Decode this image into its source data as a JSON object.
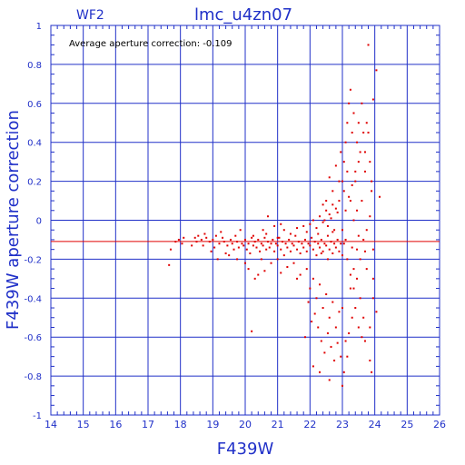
{
  "chart_data": {
    "type": "scatter",
    "panel_label": "WF2",
    "title": "lmc_u4zn07",
    "annotation": "Average aperture correction: -0.109",
    "xlabel": "F439W",
    "ylabel": "F439W aperture correction",
    "xlim": [
      14,
      26
    ],
    "ylim": [
      -1,
      1
    ],
    "xticks": [
      "14",
      "15",
      "16",
      "17",
      "18",
      "19",
      "20",
      "21",
      "22",
      "23",
      "24",
      "25",
      "26"
    ],
    "yticks": [
      "-1",
      "-0.8",
      "-0.6",
      "-0.4",
      "-0.2",
      "0",
      "0.2",
      "0.4",
      "0.6",
      "0.8",
      "1"
    ],
    "grid": true,
    "reference_line_y": -0.109,
    "colors": {
      "axes": "#2030c8",
      "points": "#e00000",
      "reference_line": "#e00000"
    },
    "series": [
      {
        "points": [
          [
            17.65,
            -0.23
          ],
          [
            17.7,
            -0.15
          ],
          [
            17.85,
            -0.11
          ],
          [
            17.95,
            -0.1
          ],
          [
            18.05,
            -0.12
          ],
          [
            18.1,
            -0.09
          ],
          [
            18.35,
            -0.13
          ],
          [
            18.45,
            -0.09
          ],
          [
            18.5,
            -0.11
          ],
          [
            18.55,
            -0.08
          ],
          [
            18.65,
            -0.1
          ],
          [
            18.7,
            -0.13
          ],
          [
            18.8,
            -0.09
          ],
          [
            18.9,
            -0.11
          ],
          [
            19.0,
            -0.1
          ],
          [
            19.05,
            -0.14
          ],
          [
            19.1,
            -0.08
          ],
          [
            19.2,
            -0.12
          ],
          [
            19.3,
            -0.09
          ],
          [
            19.35,
            -0.11
          ],
          [
            19.4,
            -0.17
          ],
          [
            19.45,
            -0.13
          ],
          [
            19.55,
            -0.1
          ],
          [
            19.6,
            -0.12
          ],
          [
            19.65,
            -0.15
          ],
          [
            19.7,
            -0.08
          ],
          [
            19.75,
            -0.11
          ],
          [
            19.8,
            -0.14
          ],
          [
            19.85,
            -0.05
          ],
          [
            19.9,
            -0.12
          ],
          [
            19.95,
            -0.13
          ],
          [
            20.0,
            -0.1
          ],
          [
            20.05,
            -0.15
          ],
          [
            20.1,
            -0.12
          ],
          [
            20.15,
            -0.17
          ],
          [
            20.2,
            -0.09
          ],
          [
            20.25,
            -0.13
          ],
          [
            20.3,
            -0.11
          ],
          [
            20.35,
            -0.14
          ],
          [
            20.4,
            -0.1
          ],
          [
            20.45,
            -0.16
          ],
          [
            20.5,
            -0.12
          ],
          [
            20.55,
            -0.13
          ],
          [
            20.6,
            -0.09
          ],
          [
            20.65,
            -0.15
          ],
          [
            20.7,
            -0.11
          ],
          [
            20.75,
            -0.14
          ],
          [
            20.8,
            -0.12
          ],
          [
            20.85,
            -0.1
          ],
          [
            20.9,
            -0.16
          ],
          [
            20.95,
            -0.12
          ],
          [
            21.0,
            -0.13
          ],
          [
            21.05,
            -0.09
          ],
          [
            21.1,
            -0.15
          ],
          [
            21.15,
            -0.11
          ],
          [
            21.2,
            -0.18
          ],
          [
            21.25,
            -0.12
          ],
          [
            21.3,
            -0.14
          ],
          [
            21.35,
            -0.1
          ],
          [
            21.4,
            -0.16
          ],
          [
            21.45,
            -0.12
          ],
          [
            21.5,
            -0.13
          ],
          [
            21.55,
            -0.08
          ],
          [
            21.6,
            -0.15
          ],
          [
            21.65,
            -0.11
          ],
          [
            21.7,
            -0.17
          ],
          [
            21.75,
            -0.12
          ],
          [
            21.8,
            -0.14
          ],
          [
            21.85,
            -0.1
          ],
          [
            21.9,
            -0.16
          ],
          [
            21.95,
            -0.12
          ],
          [
            22.0,
            -0.13
          ],
          [
            22.05,
            -0.09
          ],
          [
            22.1,
            -0.15
          ],
          [
            22.15,
            -0.11
          ],
          [
            22.2,
            -0.18
          ],
          [
            22.25,
            -0.12
          ],
          [
            22.3,
            -0.14
          ],
          [
            22.35,
            -0.1
          ],
          [
            22.4,
            -0.16
          ],
          [
            22.45,
            -0.12
          ],
          [
            22.5,
            -0.13
          ],
          [
            22.55,
            -0.08
          ],
          [
            22.6,
            -0.15
          ],
          [
            22.65,
            -0.11
          ],
          [
            22.7,
            -0.17
          ],
          [
            22.75,
            -0.12
          ],
          [
            22.8,
            -0.14
          ],
          [
            22.85,
            -0.1
          ],
          [
            22.9,
            -0.16
          ],
          [
            20.3,
            -0.3
          ],
          [
            20.4,
            -0.28
          ],
          [
            20.1,
            -0.25
          ],
          [
            20.6,
            -0.26
          ],
          [
            20.8,
            -0.22
          ],
          [
            21.1,
            -0.27
          ],
          [
            21.0,
            -0.2
          ],
          [
            20.5,
            -0.2
          ],
          [
            21.3,
            -0.24
          ],
          [
            21.6,
            -0.3
          ],
          [
            21.2,
            -0.05
          ],
          [
            21.4,
            -0.07
          ],
          [
            21.6,
            -0.04
          ],
          [
            21.8,
            -0.03
          ],
          [
            21.9,
            -0.06
          ],
          [
            22.0,
            -0.02
          ],
          [
            22.1,
            0.0
          ],
          [
            22.2,
            -0.04
          ],
          [
            22.3,
            0.02
          ],
          [
            22.4,
            -0.01
          ],
          [
            22.5,
            0.05
          ],
          [
            22.6,
            0.03
          ],
          [
            22.7,
            0.08
          ],
          [
            22.8,
            0.06
          ],
          [
            22.9,
            0.1
          ],
          [
            22.45,
            0.0
          ],
          [
            22.55,
            -0.03
          ],
          [
            22.65,
            0.01
          ],
          [
            22.75,
            -0.05
          ],
          [
            22.85,
            0.04
          ],
          [
            20.7,
            0.02
          ],
          [
            20.9,
            -0.03
          ],
          [
            21.1,
            -0.02
          ],
          [
            20.55,
            -0.05
          ],
          [
            20.2,
            -0.57
          ],
          [
            21.5,
            -0.22
          ],
          [
            21.7,
            -0.28
          ],
          [
            21.9,
            -0.25
          ],
          [
            22.0,
            -0.35
          ],
          [
            22.1,
            -0.3
          ],
          [
            22.2,
            -0.4
          ],
          [
            22.3,
            -0.33
          ],
          [
            22.4,
            -0.45
          ],
          [
            22.5,
            -0.38
          ],
          [
            22.6,
            -0.5
          ],
          [
            22.7,
            -0.42
          ],
          [
            22.8,
            -0.55
          ],
          [
            22.9,
            -0.47
          ],
          [
            22.15,
            -0.48
          ],
          [
            22.25,
            -0.55
          ],
          [
            22.35,
            -0.62
          ],
          [
            22.45,
            -0.68
          ],
          [
            22.05,
            -0.52
          ],
          [
            21.95,
            -0.42
          ],
          [
            21.85,
            -0.6
          ],
          [
            22.55,
            -0.58
          ],
          [
            22.65,
            -0.65
          ],
          [
            22.75,
            -0.72
          ],
          [
            22.95,
            -0.7
          ],
          [
            22.85,
            -0.63
          ],
          [
            23.0,
            -0.05
          ],
          [
            23.05,
            -0.12
          ],
          [
            23.1,
            0.05
          ],
          [
            23.15,
            -0.2
          ],
          [
            23.2,
            0.12
          ],
          [
            23.25,
            -0.28
          ],
          [
            23.3,
            0.18
          ],
          [
            23.35,
            -0.35
          ],
          [
            23.4,
            0.25
          ],
          [
            23.45,
            -0.15
          ],
          [
            23.5,
            0.3
          ],
          [
            23.55,
            -0.4
          ],
          [
            23.6,
            0.1
          ],
          [
            23.65,
            -0.5
          ],
          [
            23.7,
            0.35
          ],
          [
            23.75,
            -0.25
          ],
          [
            23.8,
            0.45
          ],
          [
            23.85,
            -0.55
          ],
          [
            23.9,
            0.15
          ],
          [
            23.95,
            -0.3
          ],
          [
            23.0,
            0.2
          ],
          [
            23.05,
            0.3
          ],
          [
            23.1,
            0.4
          ],
          [
            23.15,
            0.5
          ],
          [
            23.2,
            0.6
          ],
          [
            23.25,
            0.67
          ],
          [
            23.3,
            0.45
          ],
          [
            23.35,
            0.55
          ],
          [
            23.4,
            0.2
          ],
          [
            23.45,
            0.4
          ],
          [
            23.5,
            0.5
          ],
          [
            23.55,
            0.35
          ],
          [
            23.6,
            0.6
          ],
          [
            23.65,
            0.45
          ],
          [
            23.7,
            0.25
          ],
          [
            23.75,
            0.5
          ],
          [
            23.8,
            0.9
          ],
          [
            23.85,
            0.3
          ],
          [
            23.9,
            0.2
          ],
          [
            23.95,
            0.62
          ],
          [
            24.05,
            0.77
          ],
          [
            24.15,
            0.12
          ],
          [
            24.05,
            -0.47
          ],
          [
            23.95,
            -0.4
          ],
          [
            23.9,
            -0.78
          ],
          [
            23.85,
            -0.72
          ],
          [
            23.7,
            -0.62
          ],
          [
            23.6,
            -0.6
          ],
          [
            23.5,
            -0.55
          ],
          [
            23.4,
            -0.45
          ],
          [
            23.3,
            -0.5
          ],
          [
            23.2,
            -0.58
          ],
          [
            23.1,
            -0.62
          ],
          [
            23.0,
            -0.45
          ],
          [
            23.15,
            -0.7
          ],
          [
            23.05,
            -0.78
          ],
          [
            23.0,
            -0.85
          ],
          [
            23.25,
            -0.35
          ],
          [
            23.35,
            -0.25
          ],
          [
            23.45,
            -0.3
          ],
          [
            23.55,
            -0.2
          ],
          [
            23.65,
            -0.1
          ],
          [
            23.75,
            -0.05
          ],
          [
            23.85,
            0.02
          ],
          [
            23.95,
            -0.15
          ],
          [
            23.05,
            0.15
          ],
          [
            23.15,
            0.25
          ],
          [
            23.25,
            0.1
          ],
          [
            23.35,
            0.0
          ],
          [
            23.45,
            0.05
          ],
          [
            19.15,
            -0.2
          ],
          [
            19.25,
            -0.06
          ],
          [
            18.95,
            -0.16
          ],
          [
            18.75,
            -0.07
          ],
          [
            19.5,
            -0.18
          ],
          [
            19.75,
            -0.2
          ],
          [
            20.0,
            -0.22
          ],
          [
            20.25,
            -0.08
          ],
          [
            20.65,
            -0.07
          ],
          [
            21.0,
            -0.09
          ],
          [
            22.25,
            -0.07
          ],
          [
            22.35,
            -0.17
          ],
          [
            22.55,
            -0.2
          ],
          [
            22.7,
            -0.06
          ],
          [
            22.95,
            -0.12
          ],
          [
            23.0,
            -0.18
          ],
          [
            23.1,
            -0.1
          ],
          [
            23.3,
            -0.14
          ],
          [
            23.5,
            -0.08
          ],
          [
            23.7,
            -0.16
          ],
          [
            22.1,
            -0.75
          ],
          [
            22.3,
            -0.78
          ],
          [
            22.6,
            -0.82
          ],
          [
            22.5,
            0.1
          ],
          [
            22.7,
            0.15
          ],
          [
            22.9,
            0.2
          ],
          [
            22.8,
            0.28
          ],
          [
            22.6,
            0.22
          ],
          [
            22.4,
            0.08
          ],
          [
            22.95,
            0.35
          ]
        ]
      }
    ]
  }
}
